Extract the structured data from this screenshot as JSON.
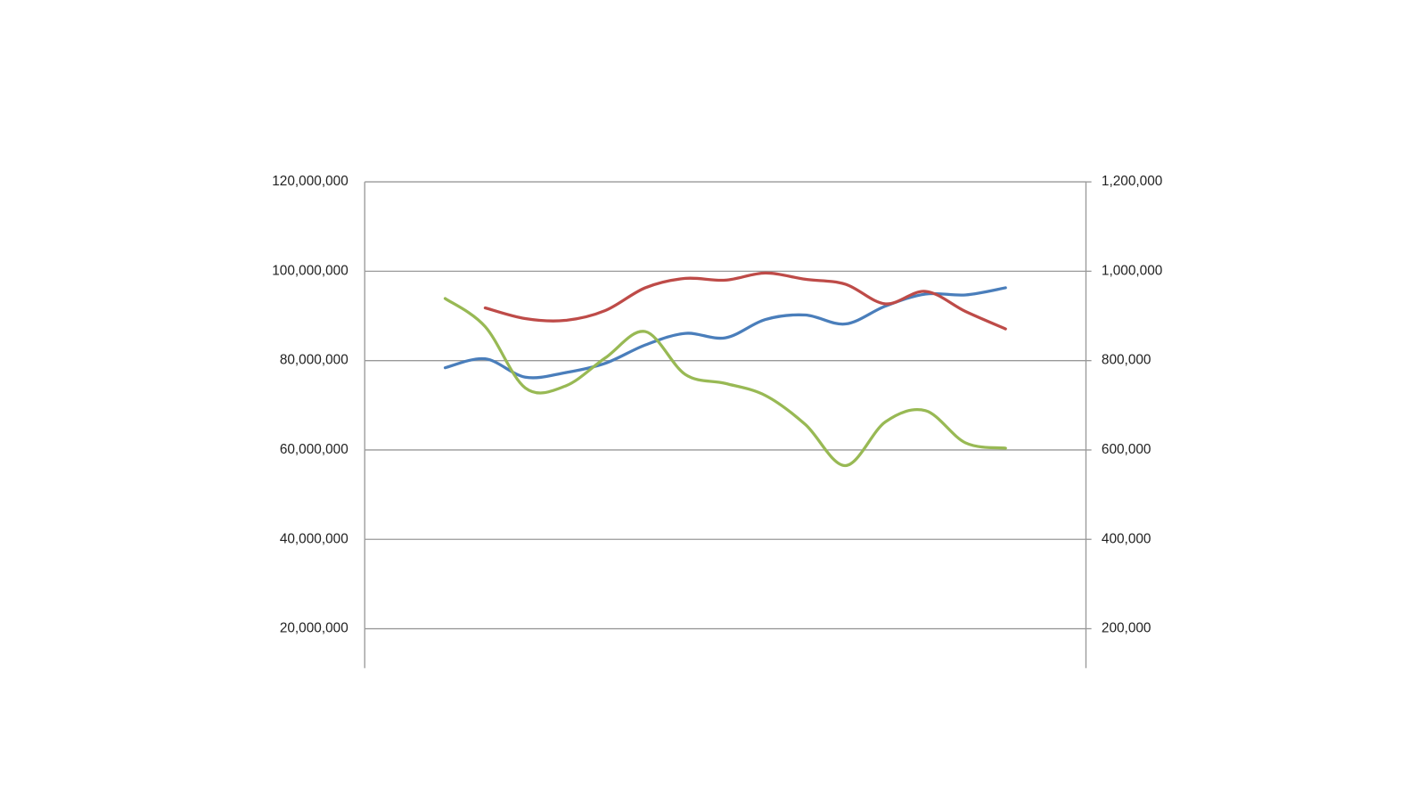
{
  "chart_data": {
    "type": "line",
    "categories": [
      null,
      null,
      null,
      null,
      null,
      null,
      null,
      null,
      null,
      null,
      null,
      null,
      null,
      null,
      null
    ],
    "series": [
      {
        "color": "#4a7ebb",
        "values": [
          78400000,
          80400000,
          76300000,
          77300000,
          79400000,
          83500000,
          86100000,
          85100000,
          89200000,
          90200000,
          88200000,
          92200000,
          94900000,
          94700000,
          96300000
        ]
      },
      {
        "color": "#be4b48",
        "values": [
          null,
          91800000,
          89400000,
          89000000,
          91200000,
          96300000,
          98400000,
          98000000,
          99600000,
          98200000,
          97100000,
          92700000,
          95500000,
          91000000,
          87100000
        ]
      },
      {
        "color": "#98b954",
        "axis": "y2",
        "values": [
          939000,
          876000,
          739000,
          743000,
          806000,
          865000,
          769000,
          749000,
          722000,
          657000,
          565000,
          663000,
          688000,
          616000,
          604000
        ]
      }
    ],
    "ylim": [
      12000000,
      120000000
    ],
    "yticks": [
      {
        "value": 20000000,
        "label": "20,000,000"
      },
      {
        "value": 40000000,
        "label": "40,000,000"
      },
      {
        "value": 60000000,
        "label": "60,000,000"
      },
      {
        "value": 80000000,
        "label": "80,000,000"
      },
      {
        "value": 100000000,
        "label": "100,000,000"
      },
      {
        "value": 120000000,
        "label": "120,000,000"
      }
    ],
    "y2lim": [
      120000,
      1200000
    ],
    "y2ticks": [
      {
        "value": 200000,
        "label": "200,000"
      },
      {
        "value": 400000,
        "label": "400,000"
      },
      {
        "value": 600000,
        "label": "600,000"
      },
      {
        "value": 800000,
        "label": "800,000"
      },
      {
        "value": 1000000,
        "label": "1,000,000"
      },
      {
        "value": 1200000,
        "label": "1,200,000"
      }
    ],
    "grid": true
  }
}
